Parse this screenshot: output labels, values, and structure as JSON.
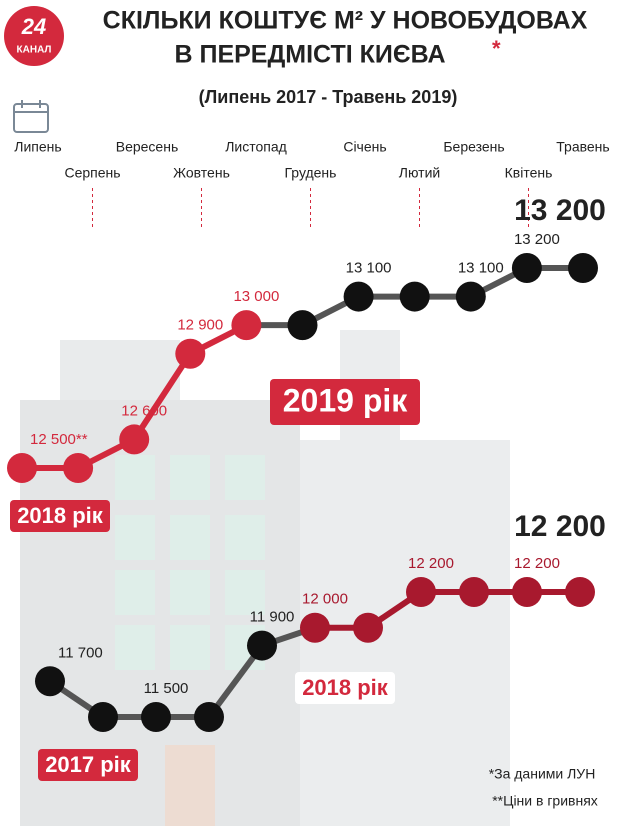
{
  "logo": {
    "number": "24",
    "name": "КАНАЛ"
  },
  "chart_data": {
    "type": "line",
    "title_lines": [
      "СКІЛЬКИ КОШТУЄ М² У НОВОБУДОВАХ",
      "В ПЕРЕДМІСТІ КИЄВА"
    ],
    "title_mark": "*",
    "subtitle": "(Липень 2017 - Травень 2019)",
    "categories": [
      "Липень",
      "Серпень",
      "Вересень",
      "Жовтень",
      "Листопад",
      "Грудень",
      "Січень",
      "Лютий",
      "Березень",
      "Квітень",
      "Травень"
    ],
    "series": [
      {
        "values": [
          12500,
          12500,
          12600,
          12900,
          13000,
          13000,
          13100,
          13100,
          13100,
          13200,
          13200
        ],
        "value_labels": [
          "12 500**",
          null,
          "12 600",
          "12 900",
          "13 000",
          null,
          "13 100",
          null,
          "13 100",
          "13 200",
          null
        ],
        "point_colors": [
          "#d3293d",
          "#d3293d",
          "#d3293d",
          "#d3293d",
          "#d3293d",
          "#111111",
          "#111111",
          "#111111",
          "#111111",
          "#111111",
          "#111111"
        ],
        "total_label": "13 200"
      },
      {
        "values": [
          11700,
          11500,
          11500,
          11500,
          11900,
          12000,
          12000,
          12200,
          12200,
          12200,
          12200
        ],
        "value_labels": [
          "11 700",
          null,
          "11 500",
          null,
          "11 900",
          "12 000",
          null,
          "12 200",
          null,
          "12 200",
          null
        ],
        "point_colors": [
          "#111111",
          "#111111",
          "#111111",
          "#111111",
          "#111111",
          "#a8192e",
          "#a8192e",
          "#a8192e",
          "#a8192e",
          "#a8192e",
          "#a8192e"
        ],
        "total_label": "12 200"
      }
    ],
    "annotations": [
      "2019 рік",
      "2018 рік",
      "2018 рік",
      "2017 рік"
    ]
  },
  "footnotes": [
    "*За даними ЛУН",
    "**Ціни в гривнях"
  ]
}
